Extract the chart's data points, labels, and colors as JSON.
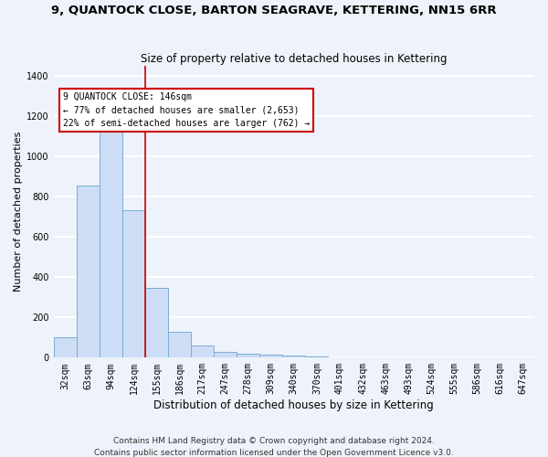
{
  "title": "9, QUANTOCK CLOSE, BARTON SEAGRAVE, KETTERING, NN15 6RR",
  "subtitle": "Size of property relative to detached houses in Kettering",
  "xlabel": "Distribution of detached houses by size in Kettering",
  "ylabel": "Number of detached properties",
  "categories": [
    "32sqm",
    "63sqm",
    "94sqm",
    "124sqm",
    "155sqm",
    "186sqm",
    "217sqm",
    "247sqm",
    "278sqm",
    "309sqm",
    "340sqm",
    "370sqm",
    "401sqm",
    "432sqm",
    "463sqm",
    "493sqm",
    "524sqm",
    "555sqm",
    "586sqm",
    "616sqm",
    "647sqm"
  ],
  "values": [
    103,
    857,
    1160,
    735,
    345,
    130,
    60,
    27,
    20,
    15,
    10,
    8,
    0,
    0,
    0,
    0,
    0,
    0,
    0,
    0,
    0
  ],
  "bar_color": "#ccddf5",
  "bar_edge_color": "#7aaed6",
  "property_label": "9 QUANTOCK CLOSE: 146sqm",
  "annotation_line1": "← 77% of detached houses are smaller (2,653)",
  "annotation_line2": "22% of semi-detached houses are larger (762) →",
  "vline_color": "#cc0000",
  "vline_x_index": 3.5,
  "ylim": [
    0,
    1450
  ],
  "yticks": [
    0,
    200,
    400,
    600,
    800,
    1000,
    1200,
    1400
  ],
  "footnote1": "Contains HM Land Registry data © Crown copyright and database right 2024.",
  "footnote2": "Contains public sector information licensed under the Open Government Licence v3.0.",
  "background_color": "#eef2fa",
  "grid_color": "#ffffff",
  "title_fontsize": 9.5,
  "subtitle_fontsize": 8.5,
  "axis_label_fontsize": 8,
  "tick_fontsize": 7,
  "footnote_fontsize": 6.5
}
